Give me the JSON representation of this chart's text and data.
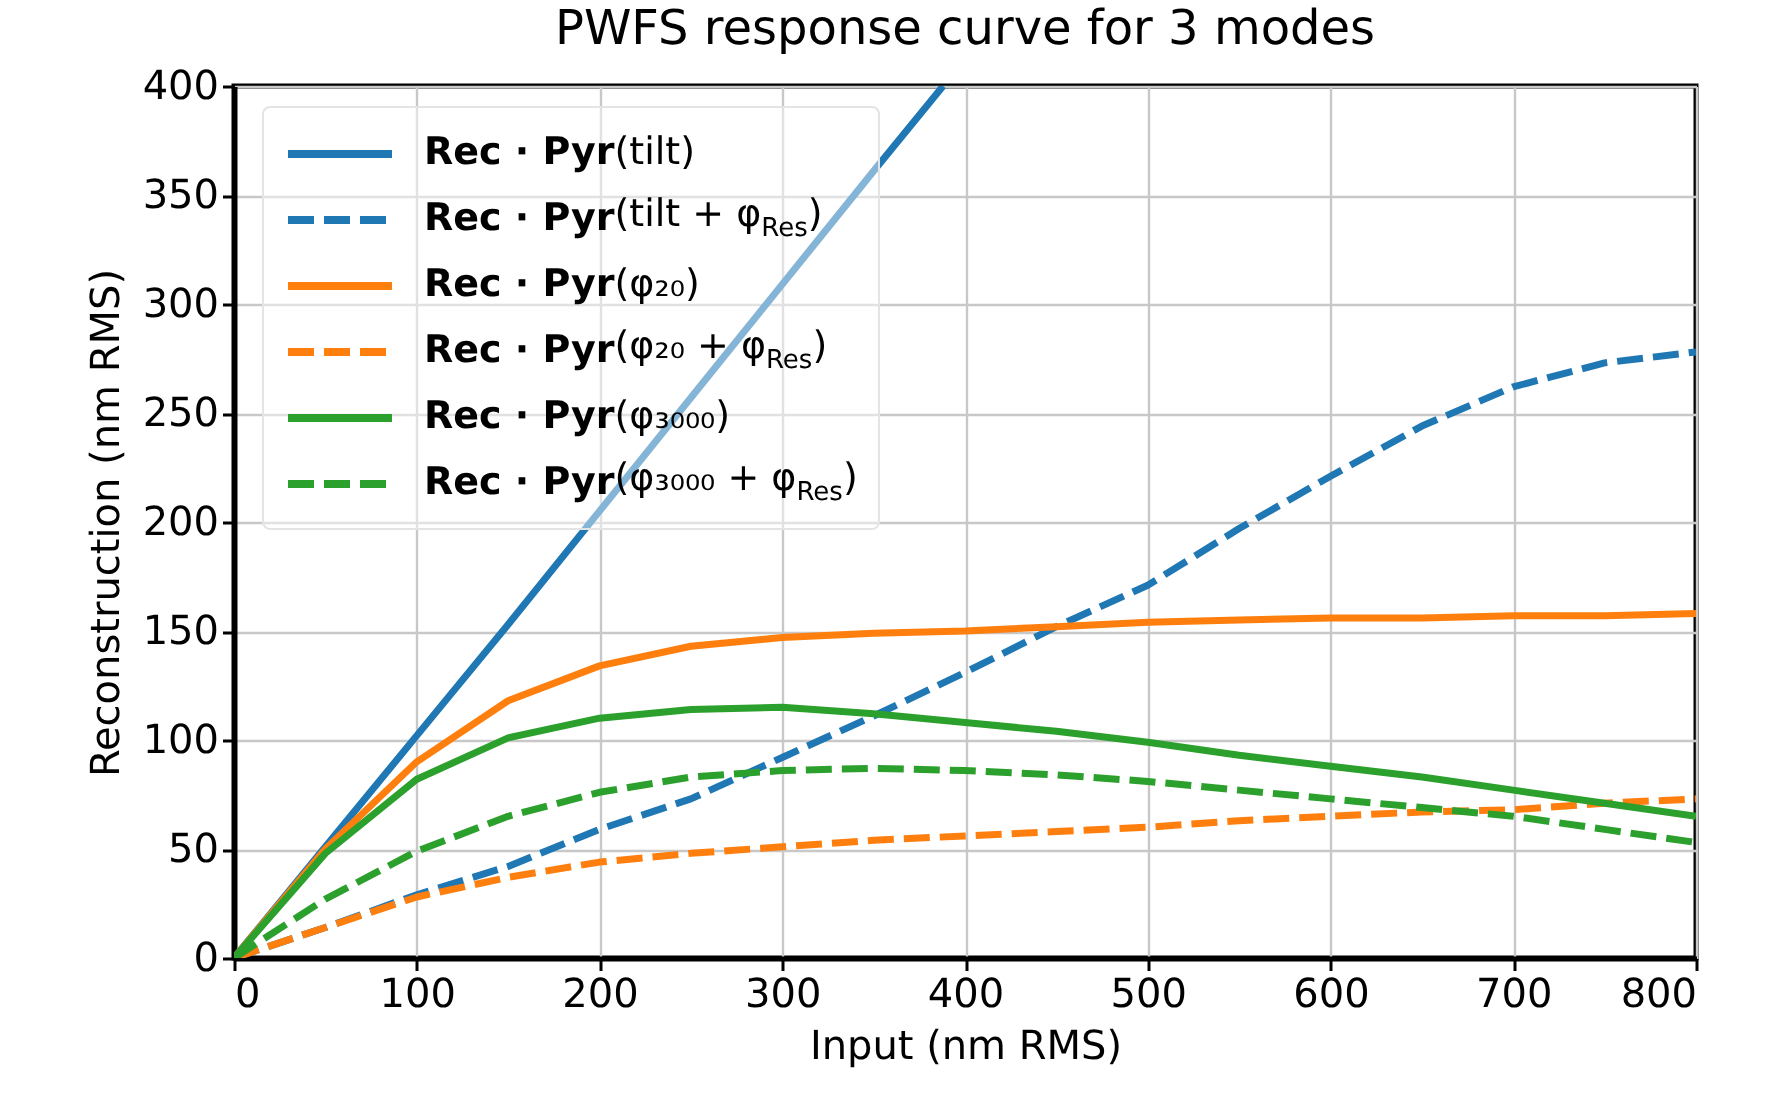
{
  "chart_data": {
    "type": "line",
    "title": "PWFS response curve for 3 modes",
    "xlabel": "Input (nm RMS)",
    "ylabel": "Reconstruction (nm RMS)",
    "x": [
      0,
      50,
      100,
      150,
      200,
      250,
      300,
      350,
      400,
      450,
      500,
      550,
      600,
      650,
      700,
      750,
      800
    ],
    "series": [
      {
        "name": "Rec · Pyr(tilt)",
        "color": "#1f77b4",
        "line_style": "solid",
        "x": [
          0,
          50,
          100,
          150,
          200,
          250,
          300,
          350,
          388
        ],
        "values": [
          0,
          51,
          102,
          153,
          205,
          257,
          309,
          361,
          400
        ]
      },
      {
        "name": "Rec · Pyr(tilt + φ$_{Res}$)",
        "color": "#1f77b4",
        "line_style": "dashed",
        "values": [
          0,
          14,
          29,
          42,
          59,
          73,
          92,
          111,
          131,
          152,
          171,
          197,
          221,
          244,
          262,
          273,
          278
        ]
      },
      {
        "name": "Rec · Pyr(φ₂₀)",
        "color": "#ff7f0e",
        "line_style": "solid",
        "values": [
          0,
          50,
          90,
          118,
          134,
          143,
          147,
          149,
          150,
          152,
          154,
          155,
          156,
          156,
          157,
          157,
          158
        ]
      },
      {
        "name": "Rec · Pyr(φ₂₀ + φ$_{Res}$)",
        "color": "#ff7f0e",
        "line_style": "dashed",
        "values": [
          0,
          14,
          28,
          37,
          44,
          48,
          51,
          54,
          56,
          58,
          60,
          63,
          65,
          67,
          68,
          71,
          73
        ]
      },
      {
        "name": "Rec · Pyr(φ₃₀₀₀)",
        "color": "#2ca02c",
        "line_style": "solid",
        "values": [
          0,
          48,
          82,
          101,
          110,
          114,
          115,
          112,
          108,
          104,
          99,
          93,
          88,
          83,
          77,
          71,
          65
        ]
      },
      {
        "name": "Rec · Pyr(φ₃₀₀₀ + φ$_{Res}$)",
        "color": "#2ca02c",
        "line_style": "dashed",
        "values": [
          0,
          27,
          49,
          65,
          76,
          83,
          86,
          87,
          86,
          84,
          81,
          77,
          73,
          69,
          65,
          59,
          53
        ]
      }
    ],
    "xlim": [
      0,
      800
    ],
    "xticks": [
      0,
      100,
      200,
      300,
      400,
      500,
      600,
      700,
      800
    ],
    "ylim": [
      0,
      400
    ],
    "yticks": [
      0,
      50,
      100,
      150,
      200,
      250,
      300,
      350,
      400
    ],
    "grid": true,
    "legend": "top left"
  }
}
